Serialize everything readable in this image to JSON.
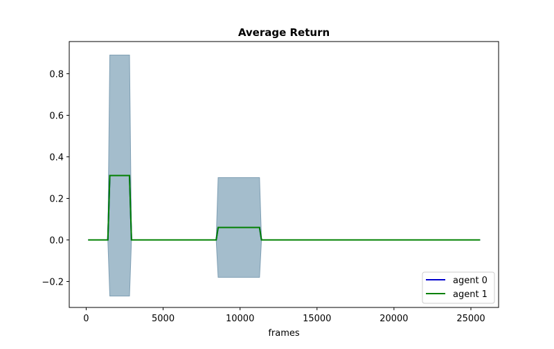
{
  "chart_data": {
    "type": "line",
    "title": "Average Return",
    "xlabel": "frames",
    "ylabel": "",
    "xlim": [
      -1100,
      26800
    ],
    "ylim": [
      -0.325,
      0.955
    ],
    "xticks": [
      0,
      5000,
      10000,
      15000,
      20000,
      25000
    ],
    "xtick_labels": [
      "0",
      "5000",
      "10000",
      "15000",
      "20000",
      "25000"
    ],
    "yticks": [
      -0.2,
      0.0,
      0.2,
      0.4,
      0.6,
      0.8
    ],
    "ytick_labels": [
      "−0.2",
      "0.0",
      "0.2",
      "0.4",
      "0.6",
      "0.8"
    ],
    "grid": false,
    "legend_position": "lower-right",
    "band_color": "#a4bdcc",
    "band_edge_color": "#7f9fb4",
    "series": [
      {
        "name": "agent 0",
        "color": "#0000cc",
        "x": [
          128,
          1408,
          1536,
          2816,
          2944,
          8448,
          8576,
          11264,
          11392,
          25600
        ],
        "y": [
          0.0,
          0.0,
          0.31,
          0.31,
          0.0,
          0.0,
          0.06,
          0.06,
          0.0,
          0.0
        ]
      },
      {
        "name": "agent 1",
        "color": "#008000",
        "x": [
          128,
          1408,
          1536,
          2816,
          2944,
          8448,
          8576,
          11264,
          11392,
          25600
        ],
        "y": [
          0.0,
          0.0,
          0.31,
          0.31,
          0.0,
          0.0,
          0.06,
          0.06,
          0.0,
          0.0
        ],
        "band": {
          "x": [
            1408,
            1536,
            2816,
            2944,
            8448,
            8576,
            11264,
            11392
          ],
          "lower": [
            0.0,
            -0.27,
            -0.27,
            0.0,
            0.0,
            -0.18,
            -0.18,
            0.0
          ],
          "upper": [
            0.0,
            0.89,
            0.89,
            0.0,
            0.0,
            0.3,
            0.3,
            0.0
          ]
        }
      }
    ]
  }
}
